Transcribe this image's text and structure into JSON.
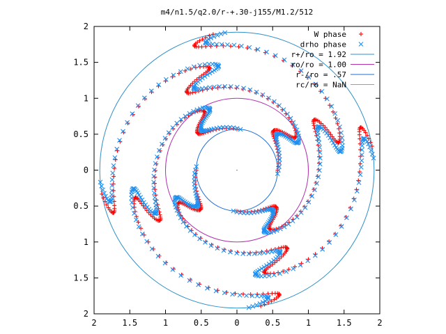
{
  "chart_data": {
    "type": "scatter",
    "title": "m4/n1.5/q2.0/r-+.30-j155/M1.2/512",
    "xlabel": "",
    "ylabel": "",
    "xlim": [
      -2,
      2
    ],
    "ylim": [
      -2,
      2
    ],
    "xtick_labels": [
      "2",
      "1.5",
      "1",
      "0.5",
      "0",
      "0.5",
      "1",
      "1.5",
      "2"
    ],
    "ytick_labels": [
      "2",
      "1.5",
      "1",
      "0.5",
      "0",
      "0.5",
      "1",
      "1.5",
      "2"
    ],
    "xtick_values": [
      -2,
      -1.5,
      -1,
      -0.5,
      0,
      0.5,
      1,
      1.5,
      2
    ],
    "ytick_values": [
      2,
      1.5,
      1,
      0.5,
      0,
      -0.5,
      -1,
      -1.5,
      -2
    ],
    "grid": false,
    "legend_position": "top-right",
    "series": [
      {
        "name": "W phase",
        "marker": "plus",
        "color": "#ff0000",
        "spiral": {
          "arms": 4,
          "r_start": 0.57,
          "r_end": 1.92,
          "phase_start_deg": 90,
          "wind_deg": 190,
          "wiggles": 2.5,
          "wiggle_amp_deg": 25
        }
      },
      {
        "name": "drho phase",
        "marker": "cross",
        "color": "#1e8ff0",
        "spiral": {
          "arms": 4,
          "r_start": 0.57,
          "r_end": 1.92,
          "phase_start_deg": 85,
          "wind_deg": 190,
          "wiggles": 2.5,
          "wiggle_amp_deg": 25
        }
      },
      {
        "name": "r+/ro = 1.92",
        "type": "circle",
        "radius": 1.92,
        "color": "#2d8fc8"
      },
      {
        "name": "ro/ro = 1.00",
        "type": "circle",
        "radius": 1.0,
        "color": "#b030b0"
      },
      {
        "name": "r-/ro = .57",
        "type": "circle",
        "radius": 0.57,
        "color": "#1f6fd8"
      },
      {
        "name": "rc/ro = NaN",
        "type": "circle",
        "radius": null,
        "color": "#2cc8e8"
      }
    ]
  }
}
